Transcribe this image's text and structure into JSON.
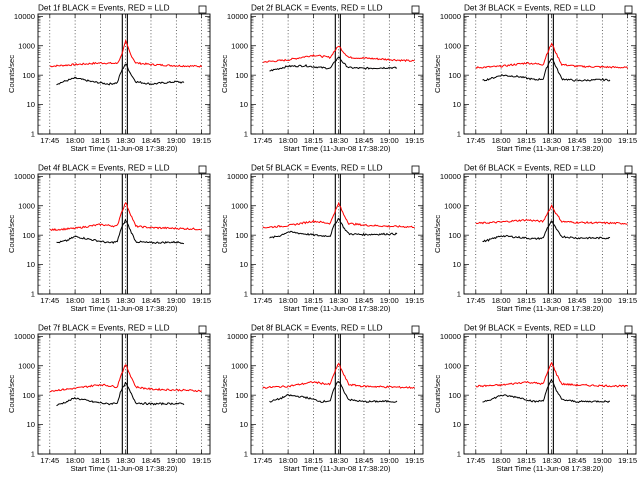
{
  "x_tick_labels": [
    "17:45",
    "18:00",
    "18:15",
    "18:30",
    "18:45",
    "19:00",
    "19:15"
  ],
  "y_tick_labels": [
    "1",
    "10",
    "100",
    "1000",
    "10000"
  ],
  "ylabel": "Counts/sec",
  "xlabel": "Start Time (11-Jun-08 17:38:20)",
  "legend_box": "",
  "chart_data": [
    {
      "type": "line",
      "title": "Det 1f BLACK = Events, RED = LLD",
      "xlabel": "Start Time (11-Jun-08 17:38:20)",
      "ylabel": "Counts/sec",
      "ylog": true,
      "ylim": [
        1,
        12000
      ],
      "xlim": [
        "17:38",
        "19:20"
      ],
      "grid": "vertical-dotted",
      "series": [
        {
          "name": "LLD",
          "color": "#ff0000",
          "x": [
            "17:45",
            "18:00",
            "18:15",
            "18:25",
            "18:27",
            "18:30",
            "18:33",
            "18:36",
            "18:45",
            "19:00",
            "19:15"
          ],
          "values": [
            200,
            230,
            260,
            250,
            400,
            1400,
            500,
            260,
            230,
            210,
            200
          ]
        },
        {
          "name": "Events",
          "color": "#000000",
          "x": [
            "17:49",
            "17:55",
            "18:00",
            "18:10",
            "18:20",
            "18:25",
            "18:27",
            "18:30",
            "18:33",
            "18:36",
            "18:45",
            "19:00",
            "19:05"
          ],
          "values": [
            50,
            65,
            80,
            60,
            50,
            55,
            120,
            250,
            110,
            60,
            50,
            60,
            55
          ]
        }
      ],
      "markers": [
        "18:28",
        "18:31"
      ]
    },
    {
      "type": "line",
      "title": "Det 2f BLACK = Events, RED = LLD",
      "xlabel": "Start Time (11-Jun-08 17:38:20)",
      "ylabel": "Counts/sec",
      "ylog": true,
      "ylim": [
        1,
        12000
      ],
      "xlim": [
        "17:38",
        "19:20"
      ],
      "grid": "vertical-dotted",
      "series": [
        {
          "name": "LLD",
          "color": "#ff0000",
          "x": [
            "17:45",
            "18:00",
            "18:15",
            "18:25",
            "18:27",
            "18:30",
            "18:33",
            "18:36",
            "18:45",
            "19:00",
            "19:15"
          ],
          "values": [
            280,
            330,
            480,
            400,
            600,
            1000,
            600,
            400,
            380,
            340,
            300
          ]
        },
        {
          "name": "Events",
          "color": "#000000",
          "x": [
            "17:49",
            "17:55",
            "18:00",
            "18:10",
            "18:20",
            "18:25",
            "18:27",
            "18:30",
            "18:33",
            "18:36",
            "18:45",
            "19:00",
            "19:05"
          ],
          "values": [
            140,
            170,
            200,
            210,
            180,
            170,
            250,
            420,
            250,
            180,
            170,
            180,
            175
          ]
        }
      ],
      "markers": [
        "18:28",
        "18:31"
      ]
    },
    {
      "type": "line",
      "title": "Det 3f BLACK = Events, RED = LLD",
      "xlabel": "Start Time (11-Jun-08 17:38:20)",
      "ylabel": "Counts/sec",
      "ylog": true,
      "ylim": [
        1,
        12000
      ],
      "xlim": [
        "17:38",
        "19:20"
      ],
      "grid": "vertical-dotted",
      "series": [
        {
          "name": "LLD",
          "color": "#ff0000",
          "x": [
            "17:45",
            "18:00",
            "18:15",
            "18:25",
            "18:27",
            "18:30",
            "18:33",
            "18:36",
            "18:45",
            "19:00",
            "19:15"
          ],
          "values": [
            180,
            200,
            260,
            230,
            500,
            1200,
            500,
            230,
            200,
            190,
            180
          ]
        },
        {
          "name": "Events",
          "color": "#000000",
          "x": [
            "17:49",
            "17:55",
            "18:00",
            "18:10",
            "18:20",
            "18:25",
            "18:27",
            "18:30",
            "18:33",
            "18:36",
            "18:45",
            "19:00",
            "19:05"
          ],
          "values": [
            65,
            80,
            100,
            90,
            70,
            75,
            180,
            400,
            170,
            75,
            65,
            70,
            68
          ]
        }
      ],
      "markers": [
        "18:28",
        "18:31"
      ]
    },
    {
      "type": "line",
      "title": "Det 4f BLACK = Events, RED = LLD",
      "xlabel": "Start Time (11-Jun-08 17:38:20)",
      "ylabel": "Counts/sec",
      "ylog": true,
      "ylim": [
        1,
        12000
      ],
      "xlim": [
        "17:38",
        "19:20"
      ],
      "grid": "vertical-dotted",
      "series": [
        {
          "name": "LLD",
          "color": "#ff0000",
          "x": [
            "17:45",
            "18:00",
            "18:15",
            "18:25",
            "18:27",
            "18:30",
            "18:33",
            "18:36",
            "18:45",
            "19:00",
            "19:15"
          ],
          "values": [
            150,
            170,
            230,
            200,
            500,
            1300,
            500,
            200,
            180,
            170,
            160
          ]
        },
        {
          "name": "Events",
          "color": "#000000",
          "x": [
            "17:49",
            "17:55",
            "18:00",
            "18:10",
            "18:20",
            "18:25",
            "18:27",
            "18:30",
            "18:33",
            "18:36",
            "18:45",
            "19:00",
            "19:05"
          ],
          "values": [
            55,
            65,
            90,
            70,
            55,
            60,
            150,
            330,
            140,
            60,
            55,
            58,
            55
          ]
        }
      ],
      "markers": [
        "18:28",
        "18:31"
      ]
    },
    {
      "type": "line",
      "title": "Det 5f BLACK = Events, RED = LLD",
      "xlabel": "Start Time (11-Jun-08 17:38:20)",
      "ylabel": "Counts/sec",
      "ylog": true,
      "ylim": [
        1,
        12000
      ],
      "xlim": [
        "17:38",
        "19:20"
      ],
      "grid": "vertical-dotted",
      "series": [
        {
          "name": "LLD",
          "color": "#ff0000",
          "x": [
            "17:45",
            "18:00",
            "18:15",
            "18:25",
            "18:27",
            "18:30",
            "18:33",
            "18:36",
            "18:45",
            "19:00",
            "19:15"
          ],
          "values": [
            180,
            210,
            300,
            250,
            500,
            1200,
            500,
            250,
            220,
            200,
            190
          ]
        },
        {
          "name": "Events",
          "color": "#000000",
          "x": [
            "17:49",
            "17:55",
            "18:00",
            "18:10",
            "18:20",
            "18:25",
            "18:27",
            "18:30",
            "18:33",
            "18:36",
            "18:45",
            "19:00",
            "19:05"
          ],
          "values": [
            80,
            95,
            130,
            110,
            95,
            95,
            200,
            380,
            180,
            110,
            105,
            110,
            110
          ]
        }
      ],
      "markers": [
        "18:28",
        "18:31"
      ]
    },
    {
      "type": "line",
      "title": "Det 6f BLACK = Events, RED = LLD",
      "xlabel": "Start Time (11-Jun-08 17:38:20)",
      "ylabel": "Counts/sec",
      "ylog": true,
      "ylim": [
        1,
        12000
      ],
      "xlim": [
        "17:38",
        "19:20"
      ],
      "grid": "vertical-dotted",
      "series": [
        {
          "name": "LLD",
          "color": "#ff0000",
          "x": [
            "17:45",
            "18:00",
            "18:15",
            "18:25",
            "18:27",
            "18:30",
            "18:33",
            "18:36",
            "18:45",
            "19:00",
            "19:15"
          ],
          "values": [
            250,
            280,
            330,
            290,
            500,
            1000,
            500,
            290,
            270,
            260,
            250
          ]
        },
        {
          "name": "Events",
          "color": "#000000",
          "x": [
            "17:49",
            "17:55",
            "18:00",
            "18:10",
            "18:20",
            "18:25",
            "18:27",
            "18:30",
            "18:33",
            "18:36",
            "18:45",
            "19:00",
            "19:05"
          ],
          "values": [
            60,
            75,
            95,
            85,
            75,
            80,
            160,
            300,
            150,
            90,
            80,
            80,
            80
          ]
        }
      ],
      "markers": [
        "18:28",
        "18:31"
      ]
    },
    {
      "type": "line",
      "title": "Det 7f BLACK = Events, RED = LLD",
      "xlabel": "Start Time (11-Jun-08 17:38:20)",
      "ylabel": "Counts/sec",
      "ylog": true,
      "ylim": [
        1,
        12000
      ],
      "xlim": [
        "17:38",
        "19:20"
      ],
      "grid": "vertical-dotted",
      "series": [
        {
          "name": "LLD",
          "color": "#ff0000",
          "x": [
            "17:45",
            "18:00",
            "18:15",
            "18:25",
            "18:27",
            "18:30",
            "18:33",
            "18:36",
            "18:45",
            "19:00",
            "19:15"
          ],
          "values": [
            140,
            170,
            230,
            190,
            450,
            1100,
            450,
            190,
            160,
            150,
            140
          ]
        },
        {
          "name": "Events",
          "color": "#000000",
          "x": [
            "17:49",
            "17:55",
            "18:00",
            "18:10",
            "18:20",
            "18:25",
            "18:27",
            "18:30",
            "18:33",
            "18:36",
            "18:45",
            "19:00",
            "19:05"
          ],
          "values": [
            45,
            60,
            80,
            60,
            50,
            55,
            130,
            260,
            120,
            55,
            50,
            52,
            50
          ]
        }
      ],
      "markers": [
        "18:28",
        "18:31"
      ]
    },
    {
      "type": "line",
      "title": "Det 8f BLACK = Events, RED = LLD",
      "xlabel": "Start Time (11-Jun-08 17:38:20)",
      "ylabel": "Counts/sec",
      "ylog": true,
      "ylim": [
        1,
        12000
      ],
      "xlim": [
        "17:38",
        "19:20"
      ],
      "grid": "vertical-dotted",
      "series": [
        {
          "name": "LLD",
          "color": "#ff0000",
          "x": [
            "17:45",
            "18:00",
            "18:15",
            "18:25",
            "18:27",
            "18:30",
            "18:33",
            "18:36",
            "18:45",
            "19:00",
            "19:15"
          ],
          "values": [
            180,
            200,
            280,
            230,
            500,
            1200,
            500,
            230,
            200,
            190,
            180
          ]
        },
        {
          "name": "Events",
          "color": "#000000",
          "x": [
            "17:49",
            "17:55",
            "18:00",
            "18:10",
            "18:20",
            "18:25",
            "18:27",
            "18:30",
            "18:33",
            "18:36",
            "18:45",
            "19:00",
            "19:05"
          ],
          "values": [
            60,
            75,
            100,
            85,
            60,
            65,
            150,
            320,
            140,
            70,
            60,
            62,
            60
          ]
        }
      ],
      "markers": [
        "18:28",
        "18:31"
      ]
    },
    {
      "type": "line",
      "title": "Det 9f BLACK = Events, RED = LLD",
      "xlabel": "Start Time (11-Jun-08 17:38:20)",
      "ylabel": "Counts/sec",
      "ylog": true,
      "ylim": [
        1,
        12000
      ],
      "xlim": [
        "17:38",
        "19:20"
      ],
      "grid": "vertical-dotted",
      "series": [
        {
          "name": "LLD",
          "color": "#ff0000",
          "x": [
            "17:45",
            "18:00",
            "18:15",
            "18:25",
            "18:27",
            "18:30",
            "18:33",
            "18:36",
            "18:45",
            "19:00",
            "19:15"
          ],
          "values": [
            200,
            220,
            280,
            240,
            500,
            1300,
            500,
            240,
            220,
            210,
            200
          ]
        },
        {
          "name": "Events",
          "color": "#000000",
          "x": [
            "17:49",
            "17:55",
            "18:00",
            "18:10",
            "18:20",
            "18:25",
            "18:27",
            "18:30",
            "18:33",
            "18:36",
            "18:45",
            "19:00",
            "19:05"
          ],
          "values": [
            60,
            75,
            100,
            85,
            60,
            65,
            150,
            330,
            140,
            70,
            60,
            62,
            60
          ]
        }
      ],
      "markers": [
        "18:28",
        "18:31"
      ]
    }
  ]
}
